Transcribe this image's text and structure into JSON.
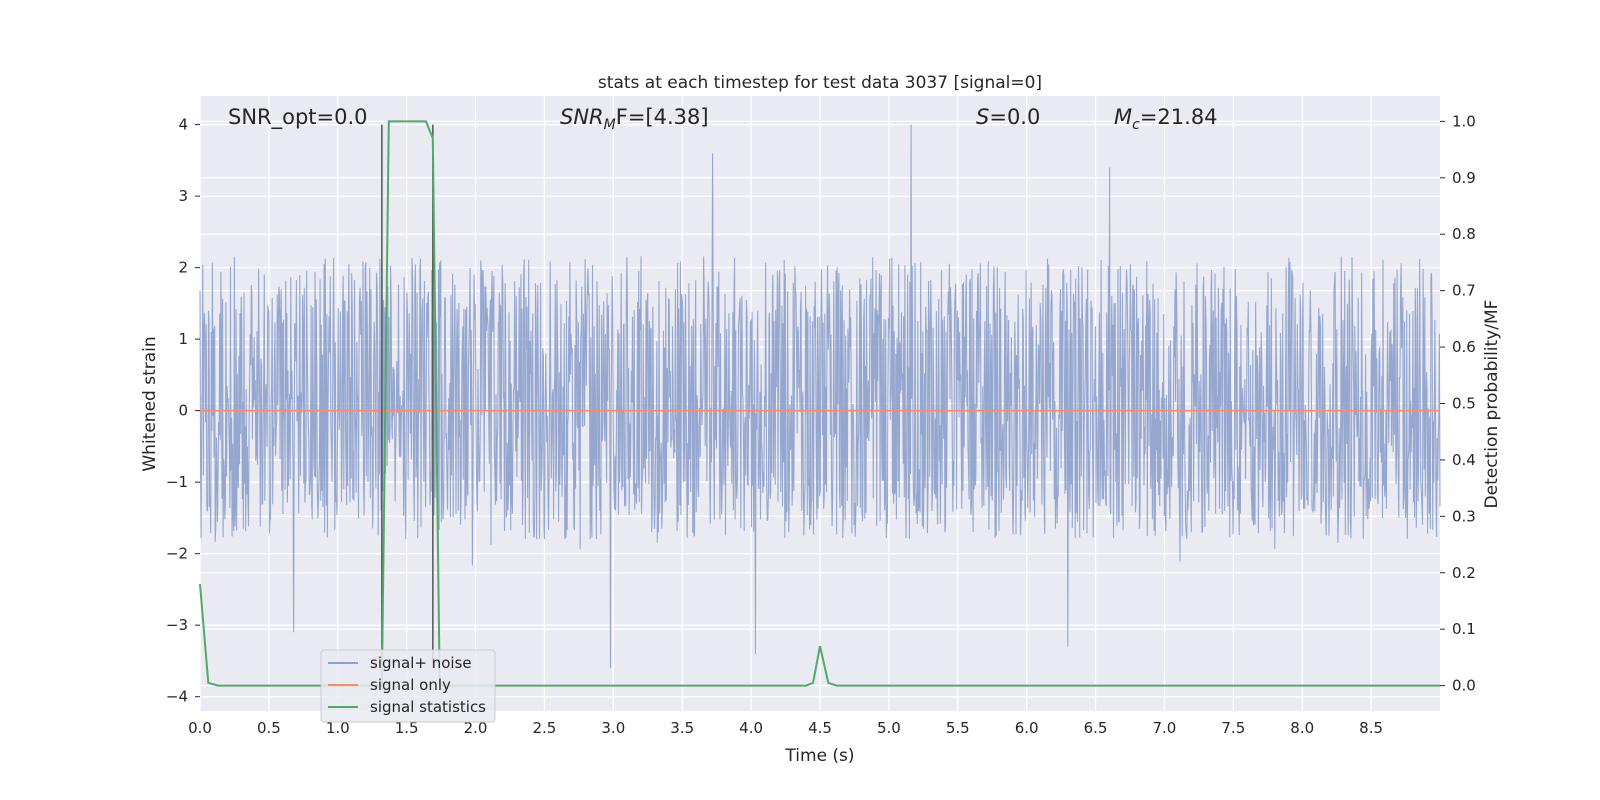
{
  "chart_data": {
    "type": "line",
    "title": "stats at each timestep for test data 3037 [signal=0]",
    "xlabel": "Time (s)",
    "ylabel": "Whitened strain",
    "y2label": "Detection probability/MF",
    "xlim": [
      0.0,
      9.0
    ],
    "ylim": [
      -4.2,
      4.4
    ],
    "y2lim": [
      -0.045,
      1.045
    ],
    "xticks": [
      "0.0",
      "0.5",
      "1.0",
      "1.5",
      "2.0",
      "2.5",
      "3.0",
      "3.5",
      "4.0",
      "4.5",
      "5.0",
      "5.5",
      "6.0",
      "6.5",
      "7.0",
      "7.5",
      "8.0",
      "8.5"
    ],
    "yticks": [
      "4",
      "3",
      "2",
      "1",
      "0",
      "−1",
      "−2",
      "−3",
      "−4"
    ],
    "y2ticks": [
      "1.0",
      "0.9",
      "0.8",
      "0.7",
      "0.6",
      "0.5",
      "0.4",
      "0.3",
      "0.2",
      "0.1",
      "0.0"
    ],
    "grid": true,
    "legend_position": "lower-left",
    "annotations": {
      "snr_opt": "SNR_opt=0.0",
      "snr_mf_sym": "SNR",
      "snr_mf_sub": "M",
      "snr_mf_rest": "F=[4.38]",
      "s_sym": "S",
      "s_rest": "=0.0",
      "mc_sym": "M",
      "mc_sub": "c",
      "mc_rest": "=21.84"
    },
    "series": [
      {
        "name": "signal+ noise",
        "color": "#8da0cb",
        "description_values": "whitened strain noise, sampled densely over 0–9 s",
        "envelope_typical": [
          -1.5,
          1.8
        ],
        "peak_spikes": [
          {
            "x": 3.72,
            "y": 3.6
          },
          {
            "x": 5.16,
            "y": 4.0
          },
          {
            "x": 6.6,
            "y": 3.4
          },
          {
            "x": 4.03,
            "y": -3.4
          },
          {
            "x": 6.3,
            "y": -3.3
          },
          {
            "x": 0.68,
            "y": -3.1
          },
          {
            "x": 2.98,
            "y": -3.6
          }
        ]
      },
      {
        "name": "signal only",
        "color": "#fc8d62",
        "x": [
          0.0,
          9.0
        ],
        "y": [
          0.0,
          0.0
        ]
      },
      {
        "name": "signal statistics",
        "color": "#55a868",
        "axis": "right",
        "x": [
          0.0,
          0.06,
          0.13,
          1.3,
          1.32,
          1.37,
          1.64,
          1.69,
          1.74,
          4.4,
          4.45,
          4.5,
          4.56,
          4.62,
          9.0
        ],
        "y": [
          0.18,
          0.005,
          0.0,
          0.0,
          0.0,
          1.0,
          1.0,
          0.97,
          0.0,
          0.0,
          0.005,
          0.07,
          0.005,
          0.0,
          0.0
        ]
      }
    ],
    "vertical_markers": [
      {
        "x": 1.32,
        "color": "#555555"
      },
      {
        "x": 1.69,
        "color": "#555555"
      }
    ]
  }
}
